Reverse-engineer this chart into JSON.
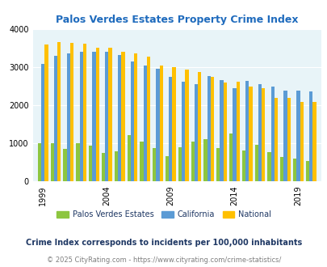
{
  "title": "Palos Verdes Estates Property Crime Index",
  "subtitle": "Crime Index corresponds to incidents per 100,000 inhabitants",
  "footer": "© 2025 CityRating.com - https://www.cityrating.com/crime-statistics/",
  "years": [
    1999,
    2000,
    2001,
    2002,
    2003,
    2004,
    2005,
    2006,
    2007,
    2008,
    2009,
    2010,
    2011,
    2012,
    2013,
    2014,
    2015,
    2016,
    2017,
    2018,
    2019,
    2020
  ],
  "pve": [
    1000,
    1010,
    860,
    1010,
    940,
    750,
    790,
    1210,
    1060,
    870,
    660,
    900,
    1040,
    1110,
    880,
    1260,
    810,
    960,
    780,
    650,
    600,
    550
  ],
  "california": [
    3100,
    3310,
    3360,
    3420,
    3420,
    3420,
    3330,
    3160,
    3050,
    2960,
    2750,
    2620,
    2570,
    2780,
    2660,
    2460,
    2640,
    2560,
    2500,
    2390,
    2390,
    2360
  ],
  "national": [
    3600,
    3670,
    3640,
    3620,
    3510,
    3510,
    3420,
    3360,
    3290,
    3050,
    3000,
    2940,
    2880,
    2760,
    2600,
    2620,
    2490,
    2460,
    2200,
    2190,
    2100,
    2090
  ],
  "pve_color": "#8dc63f",
  "california_color": "#5b9bd5",
  "national_color": "#ffc000",
  "bg_color": "#e8f4f8",
  "title_color": "#1f6bbd",
  "subtitle_color": "#1f3864",
  "footer_color": "#7f7f7f",
  "ylim": [
    0,
    4000
  ],
  "yticks": [
    0,
    1000,
    2000,
    3000,
    4000
  ],
  "xlabel_ticks": [
    1999,
    2004,
    2009,
    2014,
    2019
  ],
  "bar_width": 0.27,
  "legend_labels": [
    "Palos Verdes Estates",
    "California",
    "National"
  ]
}
